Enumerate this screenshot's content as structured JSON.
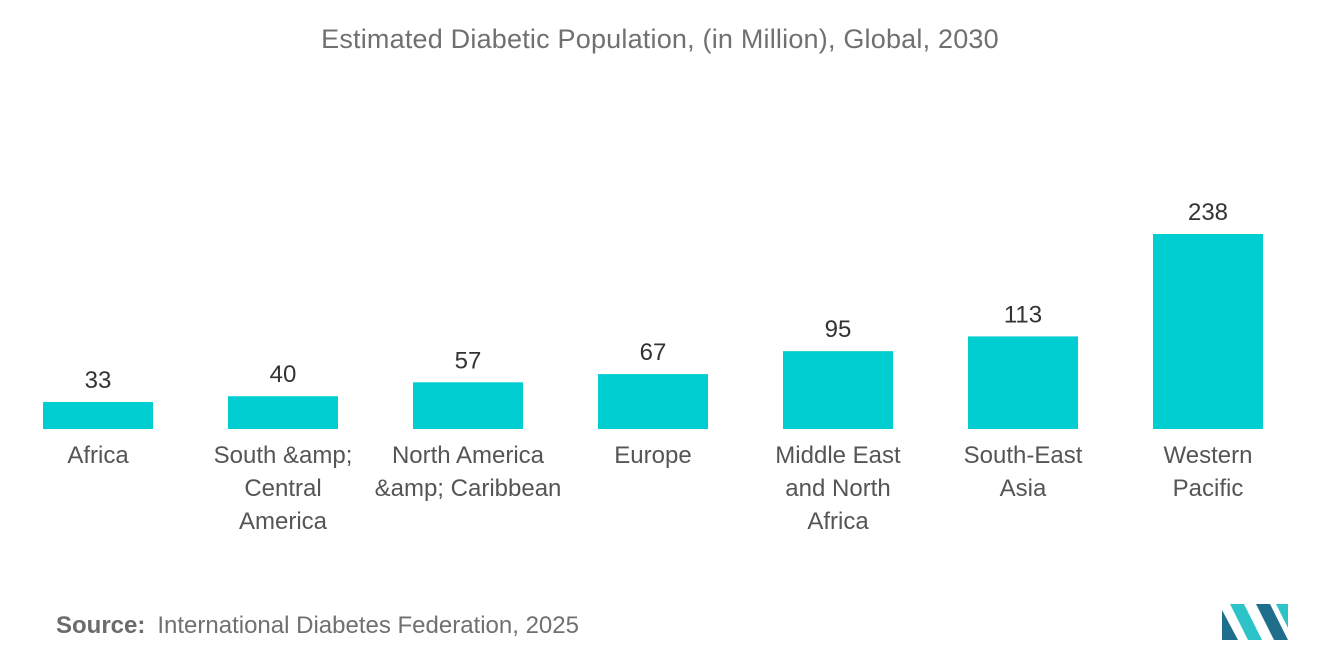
{
  "chart_data": {
    "type": "bar",
    "title": "Estimated Diabetic Population, (in Million), Global, 2030",
    "categories": [
      [
        "Africa"
      ],
      [
        "South &amp;",
        "Central",
        "America"
      ],
      [
        "North America",
        "&amp; Caribbean"
      ],
      [
        "Europe"
      ],
      [
        "Middle East",
        "and North",
        "Africa"
      ],
      [
        "South-East",
        "Asia"
      ],
      [
        "Western",
        "Pacific"
      ]
    ],
    "values": [
      33,
      40,
      57,
      67,
      95,
      113,
      238
    ],
    "xlabel": "",
    "ylabel": "",
    "ylim": [
      0,
      238
    ],
    "grid": false,
    "legend": "none"
  },
  "colors": {
    "bar": "#00CED1",
    "logo_dark": "#1e6e8c",
    "logo_light": "#2cc4c9"
  },
  "source": {
    "label": "Source:",
    "text": "International Diabetes Federation, 2025"
  },
  "logo": {
    "icon": "mordor-intelligence-logo-icon"
  }
}
